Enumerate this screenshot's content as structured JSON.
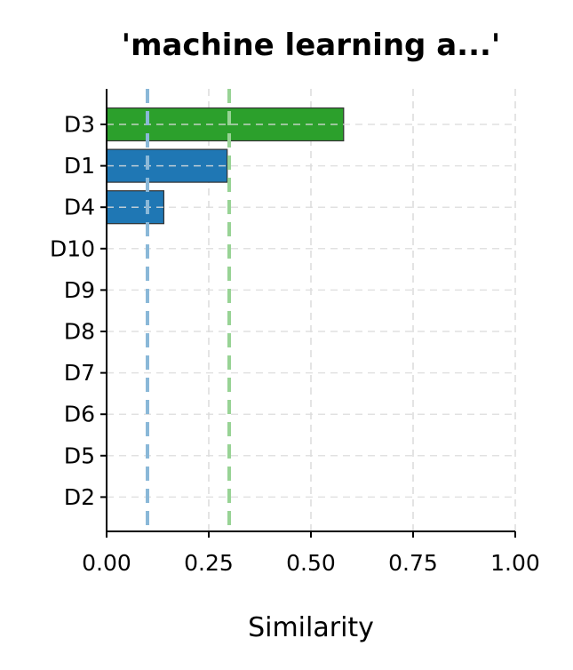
{
  "chart_data": {
    "type": "bar",
    "orientation": "horizontal",
    "title": "'machine learning a...'",
    "xlabel": "Similarity",
    "ylabel": "",
    "xlim": [
      0,
      1
    ],
    "xticks": [
      "0.00",
      "0.25",
      "0.50",
      "0.75",
      "1.00"
    ],
    "xtick_values": [
      0,
      0.25,
      0.5,
      0.75,
      1.0
    ],
    "categories": [
      "D3",
      "D1",
      "D4",
      "D10",
      "D9",
      "D8",
      "D7",
      "D6",
      "D5",
      "D2"
    ],
    "values": [
      0.58,
      0.295,
      0.14,
      0,
      0,
      0,
      0,
      0,
      0,
      0
    ],
    "bar_colors": [
      "#2ca02c",
      "#1f77b4",
      "#1f77b4",
      "#1f77b4",
      "#1f77b4",
      "#1f77b4",
      "#1f77b4",
      "#1f77b4",
      "#1f77b4",
      "#1f77b4"
    ],
    "reference_lines": [
      {
        "x": 0.1,
        "color": "#8ab8d8",
        "style": "dashed"
      },
      {
        "x": 0.3,
        "color": "#98d395",
        "style": "dashed"
      }
    ],
    "grid": true,
    "grid_style": "dashed"
  }
}
